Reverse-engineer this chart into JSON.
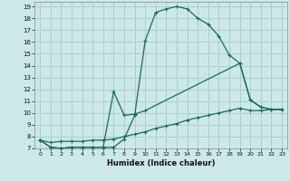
{
  "background_color": "#cce8e8",
  "grid_color": "#aacccc",
  "line_color": "#1a6b5a",
  "xlabel": "Humidex (Indice chaleur)",
  "xlim": [
    -0.5,
    23.5
  ],
  "ylim": [
    7,
    19.4
  ],
  "xticks": [
    0,
    1,
    2,
    3,
    4,
    5,
    6,
    7,
    8,
    9,
    10,
    11,
    12,
    13,
    14,
    15,
    16,
    17,
    18,
    19,
    20,
    21,
    22,
    23
  ],
  "yticks": [
    7,
    8,
    9,
    10,
    11,
    12,
    13,
    14,
    15,
    16,
    17,
    18,
    19
  ],
  "line1": {
    "x": [
      0,
      1,
      2,
      3,
      4,
      5,
      6,
      7,
      8,
      9,
      10,
      11,
      12,
      13,
      14,
      15,
      16,
      17,
      18,
      19,
      20,
      21,
      22,
      23
    ],
    "y": [
      7.7,
      7.1,
      7.0,
      7.1,
      7.1,
      7.1,
      7.1,
      7.1,
      7.8,
      9.8,
      16.1,
      18.5,
      18.8,
      19.0,
      18.8,
      18.0,
      17.5,
      16.5,
      14.9,
      14.2,
      11.1,
      10.5,
      10.3,
      10.3
    ]
  },
  "line2": {
    "x": [
      0,
      1,
      2,
      3,
      4,
      5,
      6,
      7,
      8,
      9,
      10,
      19,
      20,
      21,
      22,
      23
    ],
    "y": [
      7.7,
      7.1,
      7.0,
      7.1,
      7.1,
      7.1,
      7.1,
      11.8,
      9.8,
      9.9,
      10.2,
      14.2,
      11.1,
      10.5,
      10.3,
      10.3
    ]
  },
  "line3": {
    "x": [
      0,
      1,
      2,
      3,
      4,
      5,
      6,
      7,
      8,
      9,
      10,
      11,
      12,
      13,
      14,
      15,
      16,
      17,
      18,
      19,
      20,
      21,
      22,
      23
    ],
    "y": [
      7.7,
      7.5,
      7.6,
      7.6,
      7.6,
      7.7,
      7.7,
      7.8,
      8.0,
      8.2,
      8.4,
      8.7,
      8.9,
      9.1,
      9.4,
      9.6,
      9.8,
      10.0,
      10.2,
      10.4,
      10.2,
      10.2,
      10.3,
      10.3
    ]
  }
}
